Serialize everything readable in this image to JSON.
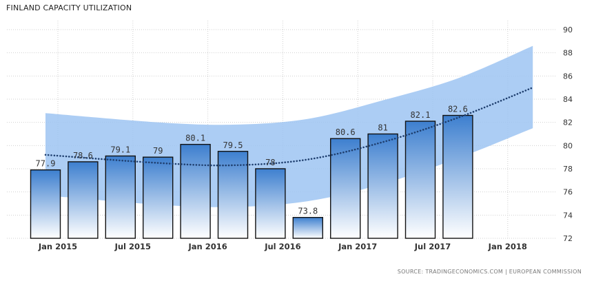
{
  "chart_data": {
    "type": "bar",
    "title": "FINLAND CAPACITY UTILIZATION",
    "xlabel": "",
    "ylabel": "",
    "ylim": [
      72,
      90
    ],
    "yticks": [
      72,
      74,
      76,
      78,
      80,
      82,
      84,
      86,
      88,
      90
    ],
    "grid": true,
    "legend": "none",
    "x_tick_labels": [
      "Jan 2015",
      "Jul 2015",
      "Jan 2016",
      "Jul 2016",
      "Jan 2017",
      "Jul 2017",
      "Jan 2018"
    ],
    "bars": [
      {
        "period": "2015 Q1",
        "value": 77.9,
        "label": "77.9"
      },
      {
        "period": "2015 Q2",
        "value": 78.6,
        "label": "78.6"
      },
      {
        "period": "2015 Q3",
        "value": 79.1,
        "label": "79.1"
      },
      {
        "period": "2015 Q4",
        "value": 79,
        "label": "79"
      },
      {
        "period": "2016 Q1",
        "value": 80.1,
        "label": "80.1"
      },
      {
        "period": "2016 Q2",
        "value": 79.5,
        "label": "79.5"
      },
      {
        "period": "2016 Q3",
        "value": 78,
        "label": "78"
      },
      {
        "period": "2016 Q4",
        "value": 73.8,
        "label": "73.8"
      },
      {
        "period": "2017 Q1",
        "value": 80.6,
        "label": "80.6"
      },
      {
        "period": "2017 Q2",
        "value": 81,
        "label": "81"
      },
      {
        "period": "2017 Q3",
        "value": 82.1,
        "label": "82.1"
      },
      {
        "period": "2017 Q4",
        "value": 82.6,
        "label": "82.6"
      }
    ],
    "trend": {
      "style": "dotted",
      "points": [
        {
          "period": "2015 Q1",
          "value": 79.2
        },
        {
          "period": "2015 Q4",
          "value": 78.5
        },
        {
          "period": "2016 Q2",
          "value": 78.3
        },
        {
          "period": "2016 Q4",
          "value": 78.8
        },
        {
          "period": "2017 Q2",
          "value": 80.3
        },
        {
          "period": "2017 Q4",
          "value": 82.4
        },
        {
          "period": "2018 Q2",
          "value": 85.0
        }
      ],
      "band_upper": [
        {
          "period": "2015 Q1",
          "value": 82.8
        },
        {
          "period": "2015 Q4",
          "value": 82.0
        },
        {
          "period": "2016 Q2",
          "value": 81.8
        },
        {
          "period": "2016 Q4",
          "value": 82.3
        },
        {
          "period": "2017 Q2",
          "value": 83.9
        },
        {
          "period": "2017 Q4",
          "value": 85.8
        },
        {
          "period": "2018 Q2",
          "value": 88.6
        }
      ],
      "band_lower": [
        {
          "period": "2015 Q1",
          "value": 75.7
        },
        {
          "period": "2015 Q4",
          "value": 74.9
        },
        {
          "period": "2016 Q2",
          "value": 74.7
        },
        {
          "period": "2016 Q4",
          "value": 75.2
        },
        {
          "period": "2017 Q2",
          "value": 76.7
        },
        {
          "period": "2017 Q4",
          "value": 78.9
        },
        {
          "period": "2018 Q2",
          "value": 81.5
        }
      ]
    },
    "colors": {
      "bar_top": "#3d7fcf",
      "bar_bottom": "#ffffff",
      "bar_border": "#111111",
      "band": "#9ec4f2",
      "trend": "#1f3f6f",
      "grid": "#cfcfcf",
      "text": "#333333"
    }
  },
  "source": "SOURCE: TRADINGECONOMICS.COM | EUROPEAN COMMISSION"
}
